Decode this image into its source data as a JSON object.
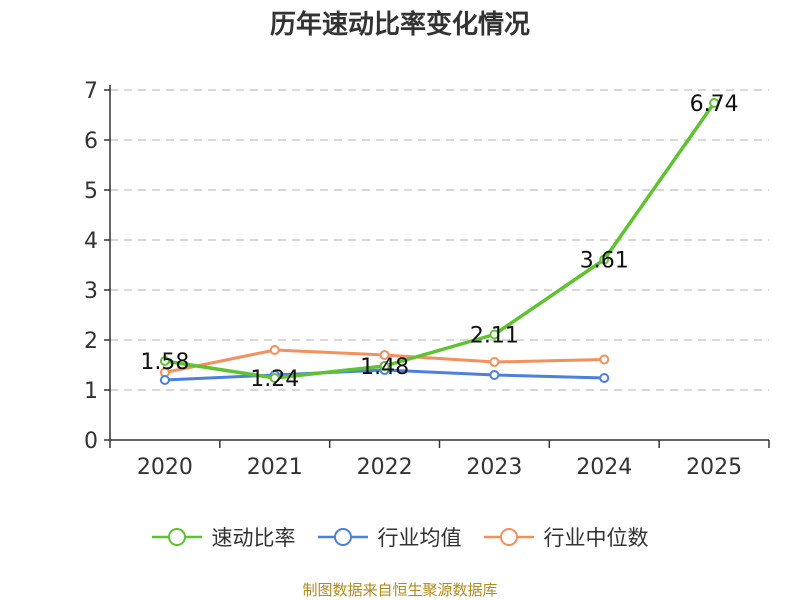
{
  "chart_data": {
    "type": "line",
    "title": "历年速动比率变化情况",
    "categories": [
      "2020",
      "2021",
      "2022",
      "2023",
      "2024",
      "2025"
    ],
    "ylim": [
      0,
      7
    ],
    "yticks": [
      "0",
      "1",
      "2",
      "3",
      "4",
      "5",
      "6",
      "7"
    ],
    "grid": true,
    "legend_position": "bottom",
    "series": [
      {
        "name": "速动比率",
        "color": "#5fc230",
        "values": [
          1.58,
          1.24,
          1.48,
          2.11,
          3.61,
          6.74
        ],
        "labels": [
          "1.58",
          "1.24",
          "1.48",
          "2.11",
          "3.61",
          "6.74"
        ]
      },
      {
        "name": "行业均值",
        "color": "#4d7fdc",
        "values": [
          1.2,
          1.3,
          1.4,
          1.3,
          1.24,
          null
        ]
      },
      {
        "name": "行业中位数",
        "color": "#f4905c",
        "values": [
          1.35,
          1.8,
          1.7,
          1.56,
          1.61,
          null
        ]
      }
    ]
  },
  "source": "制图数据来自恒生聚源数据库"
}
